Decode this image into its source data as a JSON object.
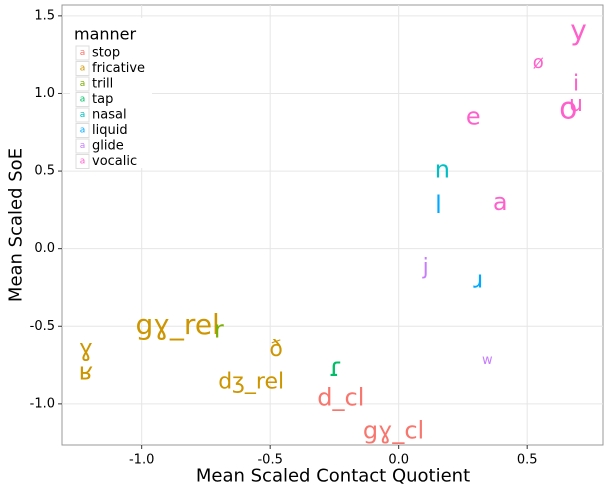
{
  "chart_data": {
    "type": "scatter",
    "xlabel": "Mean Scaled Contact Quotient",
    "ylabel": "Mean Scaled SoE",
    "legend_title": "manner",
    "legend_key_label": "a",
    "legend_position": "top-left",
    "grid": true,
    "xlim": [
      -1.31,
      0.795
    ],
    "ylim": [
      -1.265,
      1.57
    ],
    "xticks": [
      {
        "value": -1,
        "label": "-1.0"
      },
      {
        "value": -0.5,
        "label": "-0.5"
      },
      {
        "value": 0,
        "label": "0.0"
      },
      {
        "value": 0.5,
        "label": "0.5"
      }
    ],
    "yticks": [
      {
        "value": 1.5,
        "label": "1.5"
      },
      {
        "value": 1,
        "label": "1.0"
      },
      {
        "value": 0.5,
        "label": "0.5"
      },
      {
        "value": 0,
        "label": "0.0"
      },
      {
        "value": -0.5,
        "label": "-0.5"
      },
      {
        "value": -1,
        "label": "-1.0"
      }
    ],
    "series": [
      {
        "name": "stop",
        "color": "#F8766D",
        "labels": [
          "d_cl",
          "gɣ_cl"
        ],
        "x": [
          -0.225,
          -0.02
        ],
        "values": [
          -0.96,
          -1.17
        ],
        "sizes": [
          24,
          24
        ]
      },
      {
        "name": "fricative",
        "color": "#CD9600",
        "labels": [
          "gɣ_rel",
          "ð",
          "dʒ_rel",
          "ɣ",
          "ʁ"
        ],
        "x": [
          -0.86,
          -0.477,
          -0.574,
          -1.217,
          -1.217
        ],
        "values": [
          -0.49,
          -0.65,
          -0.86,
          -0.64,
          -0.79
        ],
        "sizes": [
          28,
          22,
          22,
          24,
          24
        ]
      },
      {
        "name": "trill",
        "color": "#7CAE00",
        "labels": [
          "r"
        ],
        "x": [
          -0.7
        ],
        "values": [
          -0.52
        ],
        "sizes": [
          24
        ]
      },
      {
        "name": "tap",
        "color": "#00BE67",
        "labels": [
          "ɾ"
        ],
        "x": [
          -0.245
        ],
        "values": [
          -0.77
        ],
        "sizes": [
          26
        ]
      },
      {
        "name": "nasal",
        "color": "#00BFC4",
        "labels": [
          "n"
        ],
        "x": [
          0.17
        ],
        "values": [
          0.51
        ],
        "sizes": [
          24
        ]
      },
      {
        "name": "liquid",
        "color": "#00A9FF",
        "labels": [
          "l",
          "ɹ"
        ],
        "x": [
          0.155,
          0.31
        ],
        "values": [
          0.28,
          -0.2
        ],
        "sizes": [
          24,
          24
        ]
      },
      {
        "name": "glide",
        "color": "#C77CFF",
        "labels": [
          "j",
          "w"
        ],
        "x": [
          0.105,
          0.345
        ],
        "values": [
          -0.12,
          -0.72
        ],
        "sizes": [
          22,
          13
        ]
      },
      {
        "name": "vocalic",
        "color": "#FF61CC",
        "labels": [
          "y",
          "ø",
          "i",
          "u",
          "o",
          "e",
          "a"
        ],
        "x": [
          0.7,
          0.543,
          0.69,
          0.69,
          0.66,
          0.29,
          0.395
        ],
        "values": [
          1.41,
          1.2,
          1.06,
          0.93,
          0.9,
          0.85,
          0.3
        ],
        "sizes": [
          28,
          18,
          22,
          22,
          30,
          24,
          24
        ]
      }
    ]
  }
}
